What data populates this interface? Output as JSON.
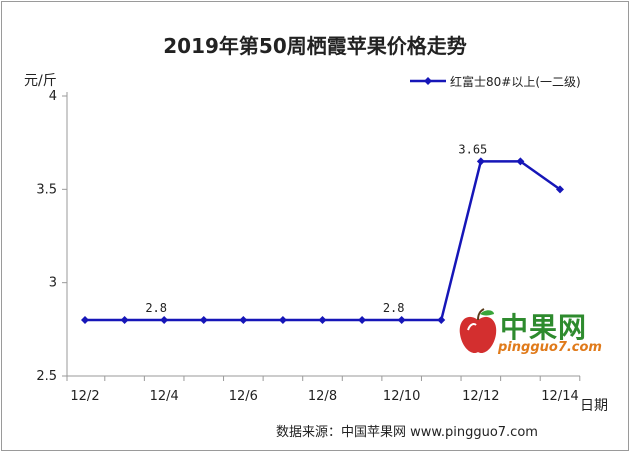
{
  "chart_data": {
    "type": "line",
    "title": "2019年第50周栖霞苹果价格走势",
    "ylabel": "元/斤",
    "xlabel": "日期",
    "ylim": [
      2.5,
      4
    ],
    "yticks": [
      2.5,
      3,
      3.5,
      4
    ],
    "ytick_labels": [
      "2.5",
      "3",
      "3.5",
      "4"
    ],
    "x": [
      "12/2",
      "12/3",
      "12/4",
      "12/5",
      "12/6",
      "12/7",
      "12/8",
      "12/9",
      "12/10",
      "12/11",
      "12/12",
      "12/13",
      "12/14"
    ],
    "xtick_labels": [
      "12/2",
      "12/4",
      "12/6",
      "12/8",
      "12/10",
      "12/12",
      "12/14"
    ],
    "series": [
      {
        "name": "红富士80#以上(一二级)",
        "values": [
          2.8,
          2.8,
          2.8,
          2.8,
          2.8,
          2.8,
          2.8,
          2.8,
          2.8,
          2.8,
          3.65,
          3.65,
          3.5
        ]
      }
    ],
    "data_labels": [
      {
        "index": 2,
        "text": "2.8"
      },
      {
        "index": 8,
        "text": "2.8"
      },
      {
        "index": 10,
        "text": "3.65"
      }
    ],
    "grid": false,
    "legend_position": "top-right",
    "colors": {
      "series": "#1616b8",
      "axis": "#9a9a9a"
    }
  },
  "source_note": "数据来源：中国苹果网 www.pingguo7.com",
  "watermark": {
    "name": "中果网",
    "url": "pingguo7.com"
  }
}
